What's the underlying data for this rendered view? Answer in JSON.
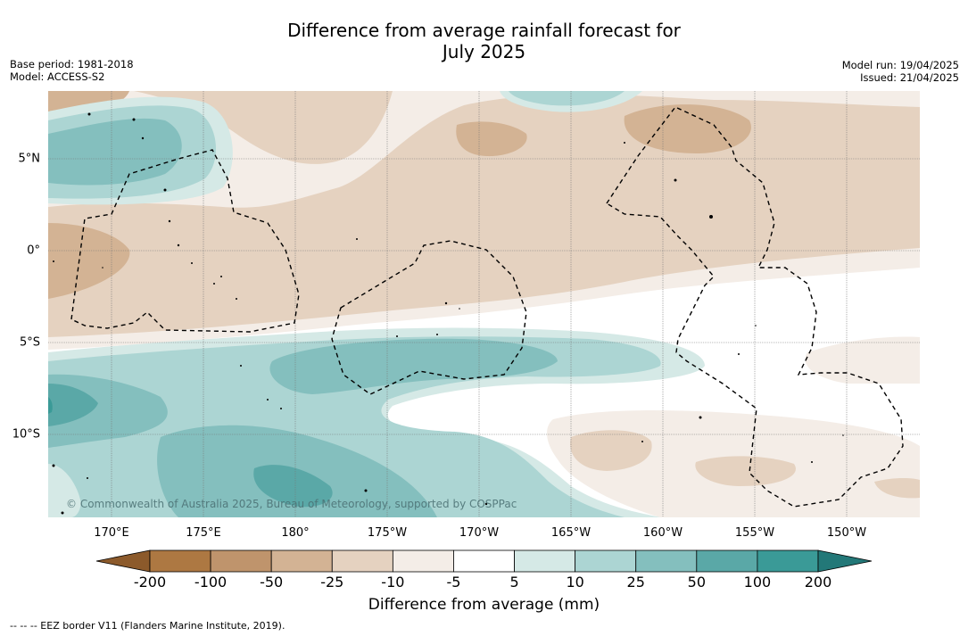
{
  "title_line1": "Difference from average rainfall forecast for",
  "title_line2": "July 2025",
  "meta_left": {
    "base_period": "Base period: 1981-2018",
    "model": "Model: ACCESS-S2"
  },
  "meta_right": {
    "model_run": "Model run: 19/04/2025",
    "issued": "Issued: 21/04/2025"
  },
  "lon_labels": [
    "170°E",
    "175°E",
    "180°",
    "175°W",
    "170°W",
    "165°W",
    "160°W",
    "155°W",
    "150°W"
  ],
  "lat_labels": [
    "5°N",
    "0°",
    "5°S",
    "10°S"
  ],
  "colorbar": {
    "ticks": [
      "-200",
      "-100",
      "-50",
      "-25",
      "-10",
      "-5",
      "5",
      "10",
      "25",
      "50",
      "100",
      "200"
    ],
    "colors": [
      "#8c5a2b",
      "#ad7842",
      "#bf946c",
      "#d3b394",
      "#e5d2c0",
      "#f4ede7",
      "#ffffff",
      "#d5e9e6",
      "#acd5d3",
      "#84bfbe",
      "#5aa8a7",
      "#3a9a97",
      "#237878"
    ],
    "label": "Difference from average (mm)"
  },
  "copyright": "© Commonwealth of Australia 2025, Bureau of Meteorology, supported by COSPPac",
  "footnote": "--  --  -- EEZ border V11 (Flanders Marine Institute, 2019)."
}
